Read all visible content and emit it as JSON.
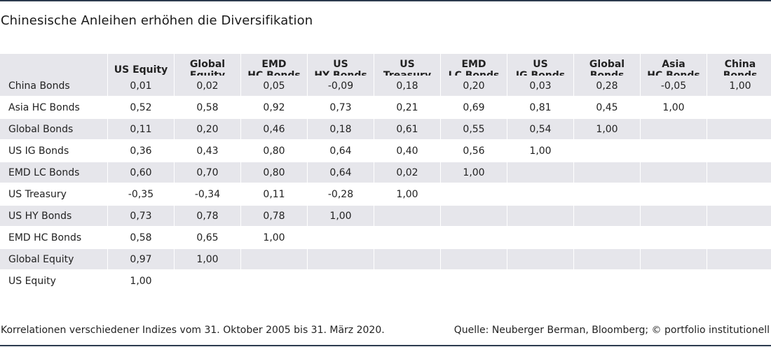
{
  "title": "Chinesische Anleihen erhöhen die Diversifikation",
  "columns": [
    "US Equity",
    "Global\nEquity",
    "EMD\nHC Bonds",
    "US\nHY Bonds",
    "US\nTreasury",
    "EMD\nLC Bonds",
    "US\nIG Bonds",
    "Global\nBonds",
    "Asia\nHC Bonds",
    "China\nBonds"
  ],
  "rows": [
    {
      "label": "China Bonds",
      "values": [
        "0,01",
        "0,02",
        "0,05",
        "-0,09",
        "0,18",
        "0,20",
        "0,03",
        "0,28",
        "-0,05",
        "1,00"
      ]
    },
    {
      "label": "Asia HC Bonds",
      "values": [
        "0,52",
        "0,58",
        "0,92",
        "0,73",
        "0,21",
        "0,69",
        "0,81",
        "0,45",
        "1,00",
        ""
      ]
    },
    {
      "label": "Global Bonds",
      "values": [
        "0,11",
        "0,20",
        "0,46",
        "0,18",
        "0,61",
        "0,55",
        "0,54",
        "1,00",
        "",
        ""
      ]
    },
    {
      "label": "US IG Bonds",
      "values": [
        "0,36",
        "0,43",
        "0,80",
        "0,64",
        "0,40",
        "0,56",
        "1,00",
        "",
        "",
        ""
      ]
    },
    {
      "label": "EMD LC Bonds",
      "values": [
        "0,60",
        "0,70",
        "0,80",
        "0,64",
        "0,02",
        "1,00",
        "",
        "",
        "",
        ""
      ]
    },
    {
      "label": "US Treasury",
      "values": [
        "-0,35",
        "-0,34",
        "0,11",
        "-0,28",
        "1,00",
        "",
        "",
        "",
        "",
        ""
      ]
    },
    {
      "label": "US HY Bonds",
      "values": [
        "0,73",
        "0,78",
        "0,78",
        "1,00",
        "",
        "",
        "",
        "",
        "",
        ""
      ]
    },
    {
      "label": "EMD HC Bonds",
      "values": [
        "0,58",
        "0,65",
        "1,00",
        "",
        "",
        "",
        "",
        "",
        "",
        ""
      ]
    },
    {
      "label": "Global Equity",
      "values": [
        "0,97",
        "1,00",
        "",
        "",
        "",
        "",
        "",
        "",
        "",
        ""
      ]
    },
    {
      "label": "US Equity",
      "values": [
        "1,00",
        "",
        "",
        "",
        "",
        "",
        "",
        "",
        "",
        ""
      ]
    }
  ],
  "footer": {
    "note": "Korrelationen verschiedener Indizes vom 31. Oktober 2005 bis 31. März 2020.",
    "source": "Quelle: Neuberger Berman, Bloomberg; © portfolio institutionell"
  },
  "colors": {
    "rule": "#2b3a4e",
    "band": "#e6e6eb"
  }
}
